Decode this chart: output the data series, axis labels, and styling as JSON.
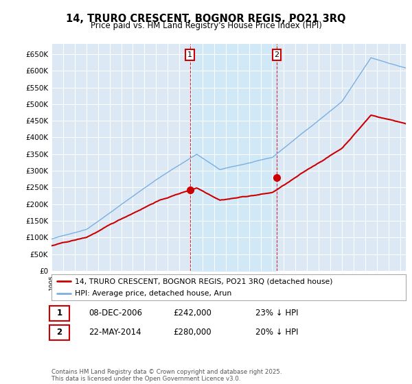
{
  "title": "14, TRURO CRESCENT, BOGNOR REGIS, PO21 3RQ",
  "subtitle": "Price paid vs. HM Land Registry's House Price Index (HPI)",
  "ylabel_ticks": [
    "£0",
    "£50K",
    "£100K",
    "£150K",
    "£200K",
    "£250K",
    "£300K",
    "£350K",
    "£400K",
    "£450K",
    "£500K",
    "£550K",
    "£600K",
    "£650K"
  ],
  "ytick_values": [
    0,
    50000,
    100000,
    150000,
    200000,
    250000,
    300000,
    350000,
    400000,
    450000,
    500000,
    550000,
    600000,
    650000
  ],
  "ylim": [
    0,
    680000
  ],
  "p1_year": 2006.92,
  "p1_price": 242000,
  "p2_year": 2014.39,
  "p2_price": 280000,
  "legend_line1": "14, TRURO CRESCENT, BOGNOR REGIS, PO21 3RQ (detached house)",
  "legend_line2": "HPI: Average price, detached house, Arun",
  "footer": "Contains HM Land Registry data © Crown copyright and database right 2025.\nThis data is licensed under the Open Government Licence v3.0.",
  "hpi_color": "#7aafe0",
  "price_color": "#cc0000",
  "shade_color": "#d0e8f8",
  "background_color": "#dce9f5",
  "plot_bg": "#ffffff",
  "annotation_box_color": "#cc0000",
  "purchases": [
    {
      "label": "1",
      "date": "08-DEC-2006",
      "price": "£242,000",
      "pct": "23% ↓ HPI"
    },
    {
      "label": "2",
      "date": "22-MAY-2014",
      "price": "£280,000",
      "pct": "20% ↓ HPI"
    }
  ]
}
